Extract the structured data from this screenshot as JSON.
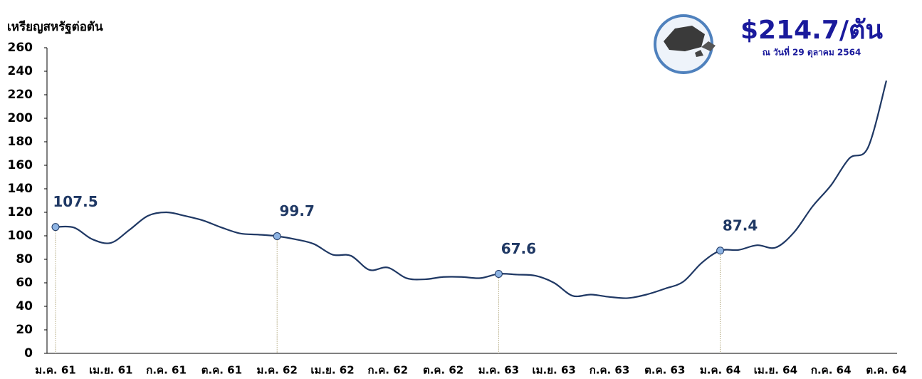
{
  "chart_data": {
    "type": "line",
    "y_axis_label": "เหรียญสหรัฐต่อตัน",
    "price_badge": {
      "price": "$214.7/ตัน",
      "date": "ณ วันที่ 29 ตุลาคม 2564"
    },
    "categories": [
      "ม.ค. 61",
      null,
      null,
      "เม.ย. 61",
      null,
      null,
      "ก.ค. 61",
      null,
      null,
      "ต.ค. 61",
      null,
      null,
      "ม.ค. 62",
      null,
      null,
      "เม.ย. 62",
      null,
      null,
      "ก.ค. 62",
      null,
      null,
      "ต.ค. 62",
      null,
      null,
      "ม.ค. 63",
      null,
      null,
      "เม.ย. 63",
      null,
      null,
      "ก.ค. 63",
      null,
      null,
      "ต.ค. 63",
      null,
      null,
      "ม.ค. 64",
      null,
      null,
      "เม.ย. 64",
      null,
      null,
      "ก.ค. 64",
      null,
      null,
      "ต.ค. 64"
    ],
    "series": [
      {
        "color": "#1f3864",
        "marker_color": "#8eb4e3",
        "marker_every": 12,
        "values": [
          107.5,
          107,
          97,
          94,
          105,
          117,
          120,
          117,
          113,
          107,
          102,
          101,
          99.7,
          97,
          93,
          84,
          83,
          71,
          73,
          64,
          63,
          65,
          65,
          64,
          67.6,
          67,
          66,
          60,
          49,
          50,
          48,
          47,
          50,
          55,
          61,
          77,
          87.4,
          88,
          92,
          90,
          103,
          125,
          143,
          166,
          175,
          232
        ]
      }
    ],
    "ylim": [
      0,
      260
    ],
    "yticks": [
      0,
      20,
      40,
      60,
      80,
      100,
      120,
      140,
      160,
      180,
      200,
      220,
      240,
      260
    ]
  }
}
